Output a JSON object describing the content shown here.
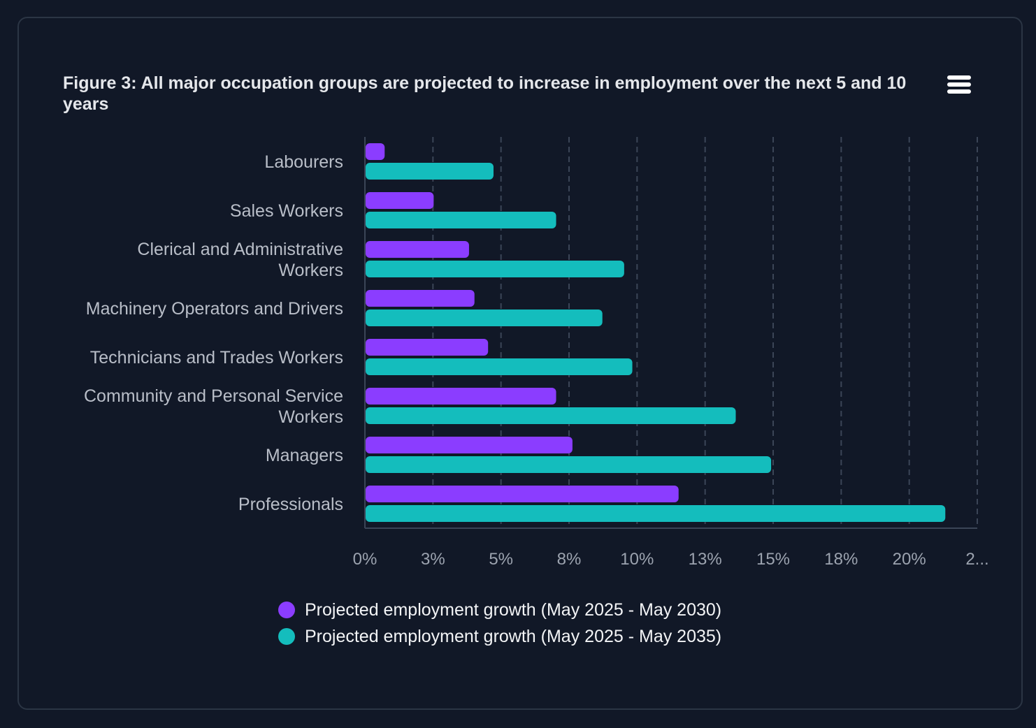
{
  "chart_data": {
    "type": "bar",
    "orientation": "horizontal",
    "title": "Figure 3: All major occupation groups are projected to increase in employment over the next 5 and 10 years",
    "categories": [
      "Labourers",
      "Sales Workers",
      "Clerical and Administrative Workers",
      "Machinery Operators and Drivers",
      "Technicians and Trades Workers",
      "Community and Personal Service Workers",
      "Managers",
      "Professionals"
    ],
    "series": [
      {
        "name": "Projected employment growth (May 2025 - May 2030)",
        "color": "#8b3dff",
        "values": [
          0.7,
          2.5,
          3.8,
          4.0,
          4.5,
          7.0,
          7.6,
          11.5
        ]
      },
      {
        "name": "Projected employment growth (May 2025 - May 2035)",
        "color": "#14bdbd",
        "values": [
          4.7,
          7.0,
          9.5,
          8.7,
          9.8,
          13.6,
          14.9,
          21.3
        ]
      }
    ],
    "xlabel": "",
    "ylabel": "",
    "xlim": [
      0,
      22.5
    ],
    "xticks": [
      0,
      2.5,
      5,
      7.5,
      10,
      12.5,
      15,
      17.5,
      20,
      22.5
    ],
    "xtick_labels": [
      "0%",
      "3%",
      "5%",
      "8%",
      "10%",
      "13%",
      "15%",
      "18%",
      "20%",
      "2..."
    ],
    "grid": true,
    "legend": "bottom"
  },
  "menu_icon": "hamburger-menu-icon"
}
